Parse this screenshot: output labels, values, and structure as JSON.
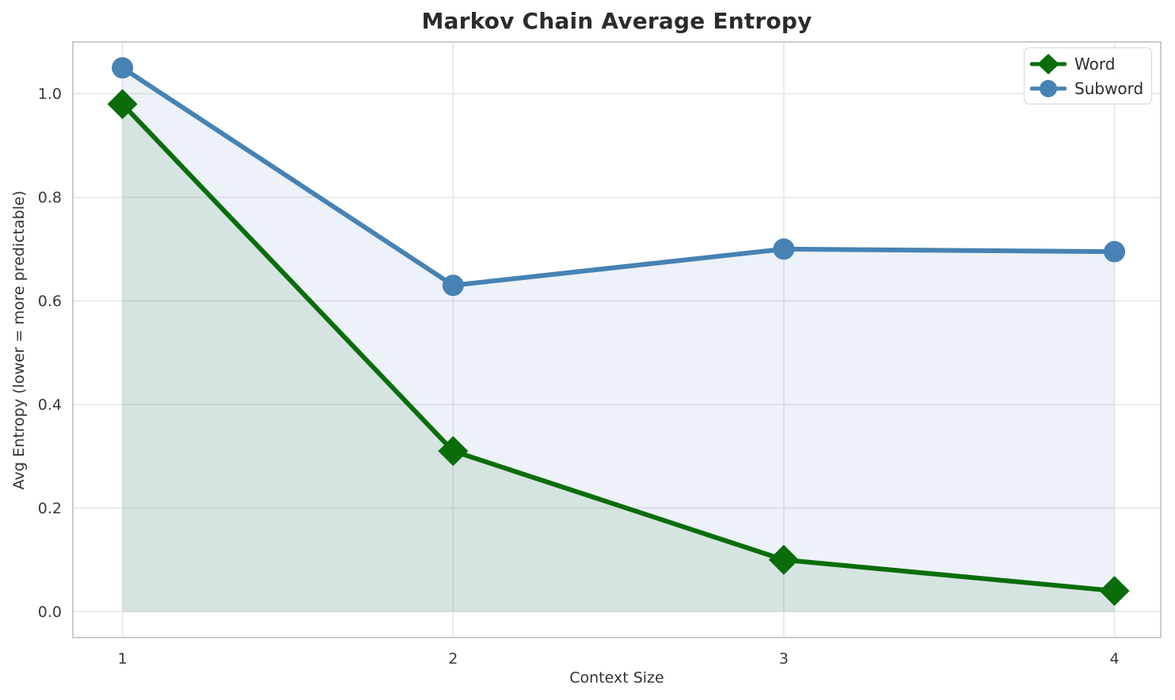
{
  "chart_data": {
    "type": "line",
    "title": "Markov Chain Average Entropy",
    "xlabel": "Context Size",
    "ylabel": "Avg Entropy (lower = more predictable)",
    "x": [
      1,
      2,
      3,
      4
    ],
    "series": [
      {
        "name": "Word",
        "values": [
          0.98,
          0.31,
          0.1,
          0.04
        ],
        "color": "#0a6d0a",
        "marker": "diamond"
      },
      {
        "name": "Subword",
        "values": [
          1.05,
          0.63,
          0.7,
          0.695
        ],
        "color": "#4682b4",
        "marker": "circle"
      }
    ],
    "xticks": {
      "values": [
        1,
        2,
        3,
        4
      ],
      "labels": [
        "1",
        "2",
        "3",
        "4"
      ]
    },
    "yticks": {
      "values": [
        0.0,
        0.2,
        0.4,
        0.6,
        0.8,
        1.0
      ],
      "labels": [
        "0.0",
        "0.2",
        "0.4",
        "0.6",
        "0.8",
        "1.0"
      ]
    },
    "xlim": [
      0.85,
      4.14
    ],
    "ylim": [
      -0.05,
      1.1
    ],
    "grid": true,
    "legend": {
      "position": "upper right",
      "entries": [
        "Word",
        "Subword"
      ]
    },
    "fill_baseline": 0,
    "fill_opacity": 0.1,
    "style": {
      "grid_color": "#e8e8e8",
      "spine_color": "#cbcbcb",
      "title_color": "#2b2b2b",
      "tick_color": "#3a3a3a",
      "background": "#ffffff"
    }
  }
}
